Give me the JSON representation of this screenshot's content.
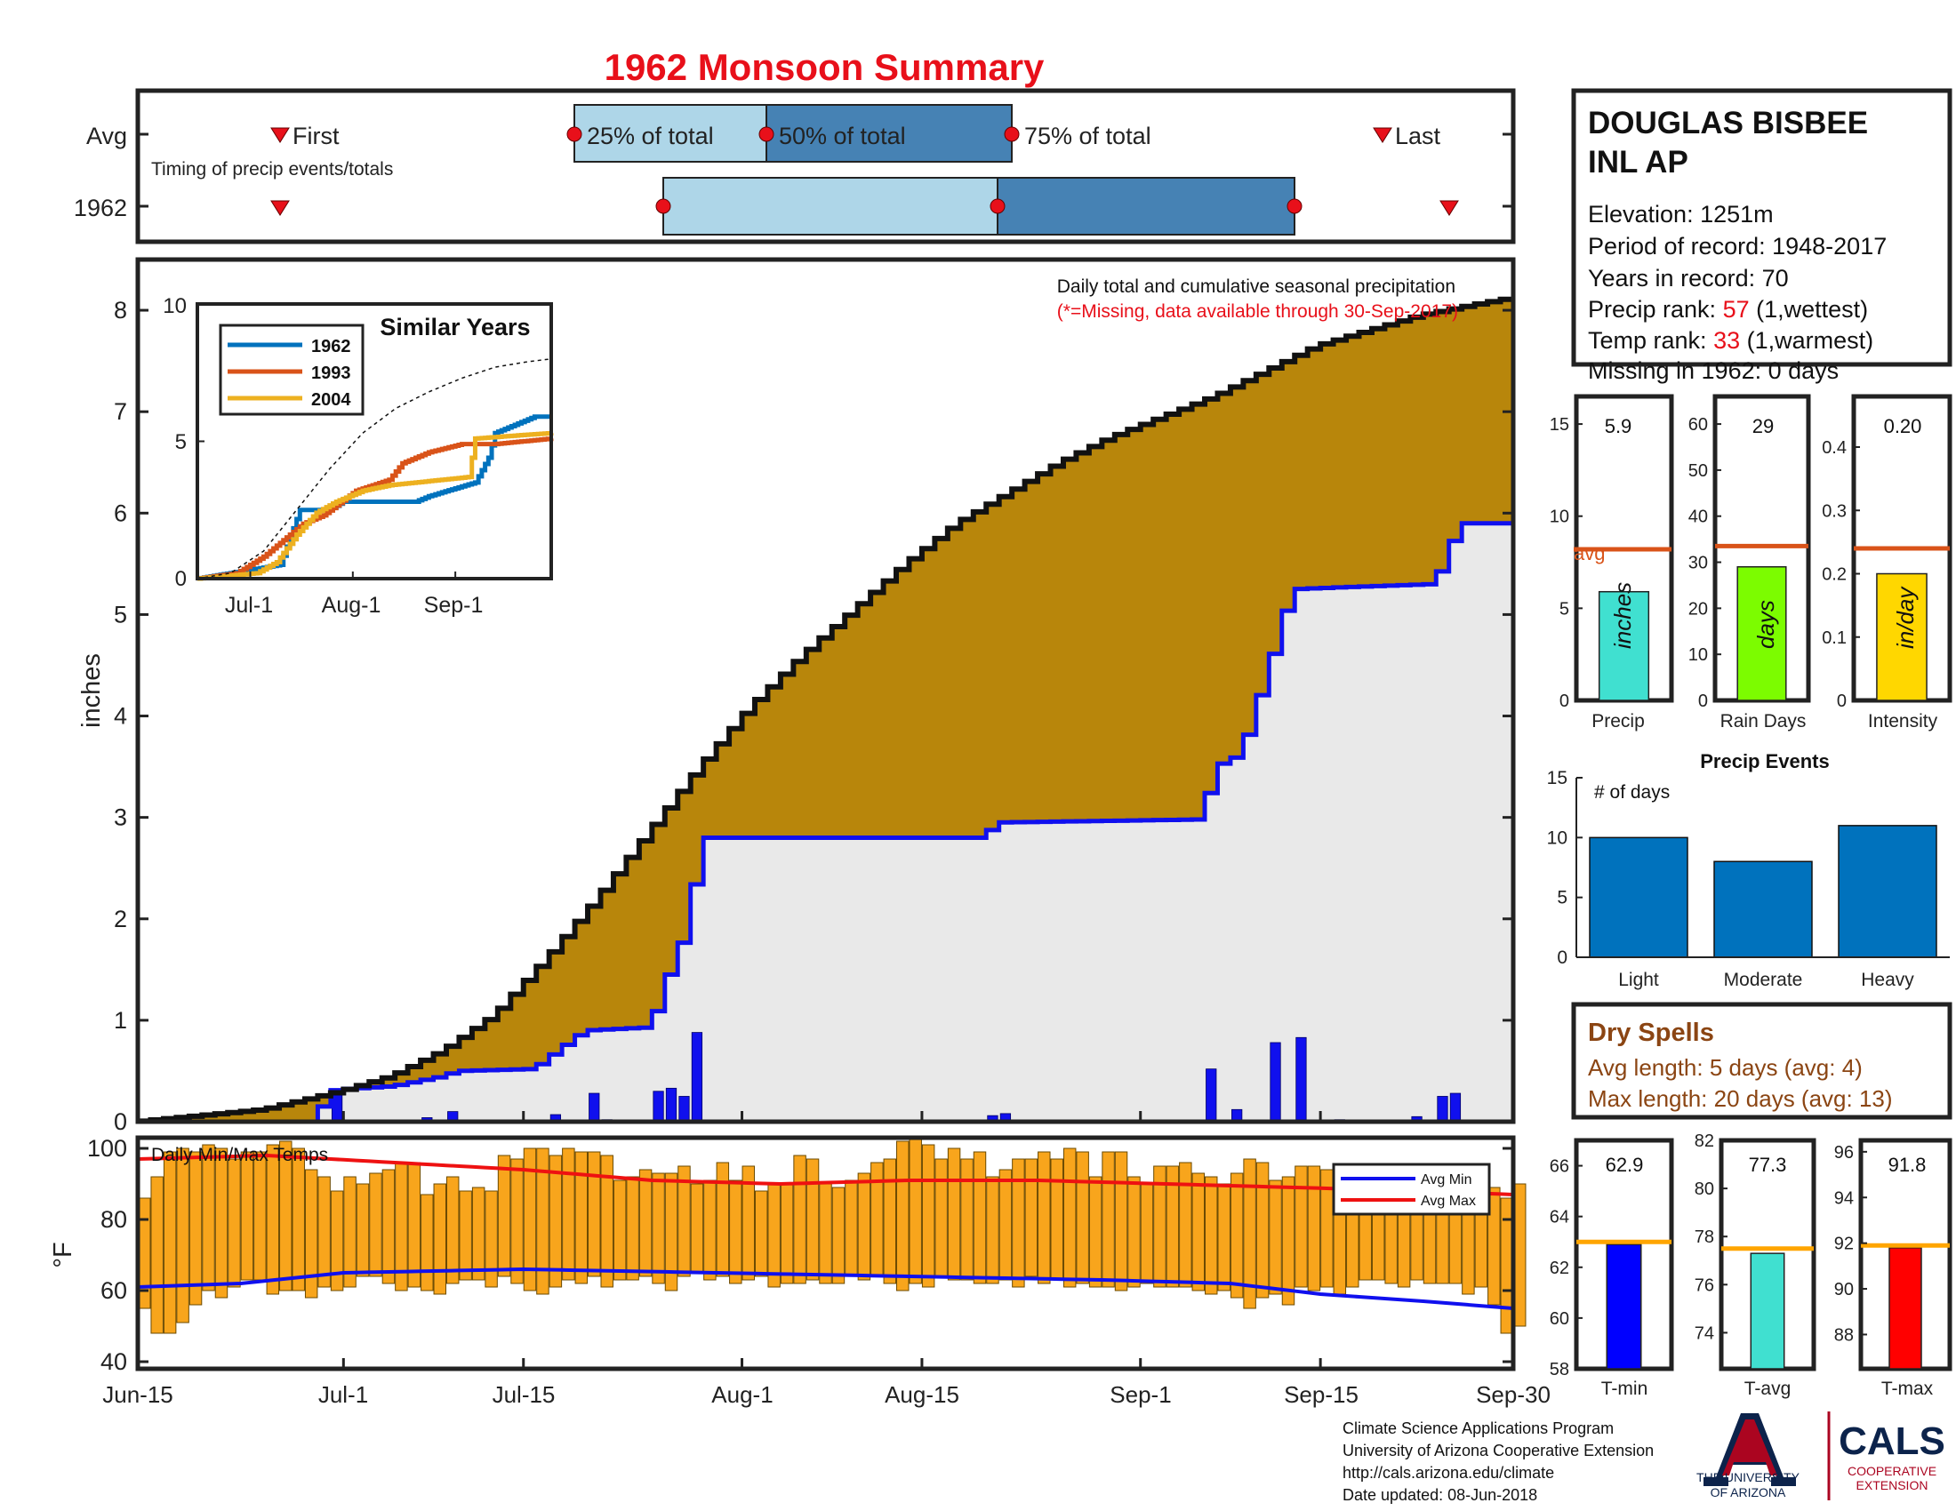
{
  "title": "1962 Monsoon Summary",
  "station": {
    "name_line1": "DOUGLAS BISBEE",
    "name_line2": "INL AP",
    "elevation": "Elevation: 1251m",
    "period": "Period of record: 1948-2017",
    "years": "Years in record: 70",
    "precip_rank_label": "Precip rank: ",
    "precip_rank_value": "57",
    "precip_rank_note": " (1,wettest)",
    "temp_rank_label": "Temp rank: ",
    "temp_rank_value": "33",
    "temp_rank_note": " (1,warmest)",
    "missing": "Missing in 1962: 0 days"
  },
  "timing": {
    "row_avg": "Avg",
    "row_year": "1962",
    "first": "First",
    "p25": "25% of total",
    "p50": "50% of total",
    "p75": "75% of total",
    "last": "Last",
    "caption": "Timing of precip events/totals"
  },
  "precip": {
    "header": "Daily total and cumulative seasonal precipitation",
    "missing_note": "(*=Missing, data available through 30-Sep-2017)",
    "ylabel": "inches"
  },
  "similar": {
    "title": "Similar Years",
    "legend": [
      "1962",
      "1993",
      "2004"
    ],
    "yticks": [
      "10",
      "5",
      "0"
    ],
    "xticks": [
      "Jul-1",
      "Aug-1",
      "Sep-1"
    ]
  },
  "temps": {
    "caption": "Daily Min/Max Temps",
    "ylabel": "°F",
    "legend_min": "Avg Min",
    "legend_max": "Avg Max"
  },
  "dates": [
    "Jun-15",
    "Jul-1",
    "Jul-15",
    "Aug-1",
    "Aug-15",
    "Sep-1",
    "Sep-15",
    "Sep-30"
  ],
  "bars3": {
    "precip_value": "5.9",
    "raindays_value": "29",
    "intensity_value": "0.20",
    "precip_label": "Precip",
    "raindays_label": "Rain Days",
    "intensity_label": "Intensity",
    "precip_unit": "inches",
    "raindays_unit": "days",
    "intensity_unit": "in/day",
    "avg_label": "avg"
  },
  "events": {
    "title": "Precip Events",
    "ylabel": "# of days",
    "categories": [
      "Light",
      "Moderate",
      "Heavy"
    ]
  },
  "dry": {
    "title": "Dry Spells",
    "avg_length": "Avg length: 5 days (avg: 4)",
    "max_length": "Max length: 20 days (avg: 13)"
  },
  "tbars": {
    "tmin_value": "62.9",
    "tavg_value": "77.3",
    "tmax_value": "91.8",
    "tmin_label": "T-min",
    "tavg_label": "T-avg",
    "tmax_label": "T-max"
  },
  "footer": {
    "line1": "Climate Science Applications Program",
    "line2": "University of Arizona Cooperative Extension",
    "line3": "http://cals.arizona.edu/climate",
    "line4": " Date updated: 08-Jun-2018"
  },
  "logos": {
    "ua_line1": "THE UNIVERSITY",
    "ua_line2": "OF ARIZONA",
    "cals": "CALS",
    "cals_line1": "COOPERATIVE",
    "cals_line2": "EXTENSION"
  },
  "colors": {
    "title": "#e8101a",
    "cumulative_fill": "#b8860b",
    "year_fill": "#e9e9e9",
    "daily_bar": "#1010ee",
    "temp_bar": "#f8a51c",
    "avg_line": "#d95319",
    "box_light": "#aed6e8",
    "box_dark": "#4682b4",
    "series_1962": "#0072bd",
    "series_1993": "#d95319",
    "series_2004": "#edb120",
    "dry": "#8b4513"
  },
  "chart_data": [
    {
      "type": "area",
      "name": "cumulative_precip",
      "xlim": [
        0,
        107
      ],
      "ylim": [
        0,
        8.5
      ],
      "yticks": [
        0,
        1,
        2,
        3,
        4,
        5,
        6,
        7,
        8
      ],
      "xtick_days": [
        0,
        16,
        30,
        47,
        61,
        78,
        92,
        107
      ],
      "xtick_labels": [
        "Jun-15",
        "Jul-1",
        "Jul-15",
        "Aug-1",
        "Aug-15",
        "Sep-1",
        "Sep-15",
        "Sep-30"
      ],
      "avg_cumulative_keypoints": [
        [
          0,
          0
        ],
        [
          10,
          0.12
        ],
        [
          16,
          0.3
        ],
        [
          20,
          0.45
        ],
        [
          24,
          0.7
        ],
        [
          28,
          1.05
        ],
        [
          32,
          1.6
        ],
        [
          36,
          2.2
        ],
        [
          40,
          2.85
        ],
        [
          44,
          3.5
        ],
        [
          48,
          4.1
        ],
        [
          52,
          4.6
        ],
        [
          56,
          5.05
        ],
        [
          60,
          5.5
        ],
        [
          64,
          5.9
        ],
        [
          68,
          6.2
        ],
        [
          72,
          6.5
        ],
        [
          76,
          6.75
        ],
        [
          80,
          6.95
        ],
        [
          84,
          7.15
        ],
        [
          88,
          7.4
        ],
        [
          92,
          7.65
        ],
        [
          96,
          7.8
        ],
        [
          100,
          7.95
        ],
        [
          104,
          8.05
        ],
        [
          107,
          8.12
        ]
      ],
      "year_cumulative_keypoints": [
        [
          0,
          0
        ],
        [
          14,
          0.0
        ],
        [
          15,
          0.3
        ],
        [
          16,
          0.32
        ],
        [
          20,
          0.35
        ],
        [
          24,
          0.45
        ],
        [
          25,
          0.5
        ],
        [
          31,
          0.52
        ],
        [
          35,
          0.9
        ],
        [
          40,
          0.93
        ],
        [
          41,
          1.25
        ],
        [
          42,
          1.65
        ],
        [
          43,
          1.88
        ],
        [
          44,
          2.8
        ],
        [
          45,
          2.8
        ],
        [
          66,
          2.8
        ],
        [
          67,
          2.95
        ],
        [
          83,
          2.98
        ],
        [
          84,
          3.5
        ],
        [
          86,
          3.62
        ],
        [
          88,
          4.4
        ],
        [
          90,
          5.25
        ],
        [
          94,
          5.27
        ],
        [
          101,
          5.3
        ],
        [
          102,
          5.55
        ],
        [
          103,
          5.9
        ],
        [
          107,
          5.9
        ]
      ],
      "daily_bars": [
        [
          15,
          0.3
        ],
        [
          22,
          0.04
        ],
        [
          24,
          0.1
        ],
        [
          32,
          0.07
        ],
        [
          35,
          0.28
        ],
        [
          36,
          0.02
        ],
        [
          40,
          0.3
        ],
        [
          41,
          0.33
        ],
        [
          42,
          0.25
        ],
        [
          43,
          0.88
        ],
        [
          66,
          0.06
        ],
        [
          67,
          0.08
        ],
        [
          83,
          0.52
        ],
        [
          85,
          0.12
        ],
        [
          88,
          0.78
        ],
        [
          90,
          0.83
        ],
        [
          93,
          0.02
        ],
        [
          99,
          0.05
        ],
        [
          101,
          0.25
        ],
        [
          102,
          0.28
        ]
      ]
    },
    {
      "type": "line",
      "name": "similar_years",
      "ylim": [
        0,
        10
      ],
      "series": [
        {
          "name": "1962",
          "points": [
            [
              0,
              0
            ],
            [
              15,
              0.3
            ],
            [
              20,
              0.4
            ],
            [
              25,
              0.5
            ],
            [
              31,
              2.5
            ],
            [
              40,
              2.5
            ],
            [
              44,
              2.8
            ],
            [
              66,
              2.8
            ],
            [
              70,
              3.0
            ],
            [
              84,
              3.5
            ],
            [
              88,
              4.4
            ],
            [
              90,
              5.3
            ],
            [
              102,
              5.9
            ],
            [
              107,
              5.9
            ]
          ]
        },
        {
          "name": "1993",
          "points": [
            [
              0,
              0
            ],
            [
              12,
              0.2
            ],
            [
              20,
              0.8
            ],
            [
              28,
              1.6
            ],
            [
              32,
              2.0
            ],
            [
              38,
              2.3
            ],
            [
              48,
              3.2
            ],
            [
              58,
              3.6
            ],
            [
              62,
              4.2
            ],
            [
              70,
              4.6
            ],
            [
              80,
              4.9
            ],
            [
              90,
              4.9
            ],
            [
              107,
              5.1
            ]
          ]
        },
        {
          "name": "2004",
          "points": [
            [
              0,
              0
            ],
            [
              18,
              0.2
            ],
            [
              24,
              0.6
            ],
            [
              30,
              1.6
            ],
            [
              36,
              2.4
            ],
            [
              42,
              2.8
            ],
            [
              50,
              3.2
            ],
            [
              58,
              3.4
            ],
            [
              66,
              3.5
            ],
            [
              74,
              3.6
            ],
            [
              82,
              3.7
            ],
            [
              84,
              5.1
            ],
            [
              95,
              5.2
            ],
            [
              107,
              5.3
            ]
          ]
        },
        {
          "name": "avg",
          "points": [
            [
              0,
              0
            ],
            [
              10,
              0.2
            ],
            [
              20,
              1.0
            ],
            [
              30,
              2.5
            ],
            [
              40,
              4.0
            ],
            [
              50,
              5.3
            ],
            [
              60,
              6.2
            ],
            [
              70,
              6.8
            ],
            [
              80,
              7.3
            ],
            [
              90,
              7.7
            ],
            [
              100,
              7.9
            ],
            [
              107,
              8.0
            ]
          ]
        }
      ]
    },
    {
      "type": "bar",
      "name": "daily_temps",
      "ylim": [
        38,
        103
      ],
      "yticks": [
        40,
        60,
        80,
        100
      ],
      "min_temps": [
        55,
        48,
        48,
        51,
        56,
        60,
        58,
        61,
        63,
        63,
        59,
        60,
        60,
        58,
        61,
        60,
        61,
        64,
        64,
        62,
        60,
        61,
        60,
        59,
        62,
        63,
        63,
        61,
        64,
        62,
        60,
        59,
        61,
        63,
        62,
        64,
        61,
        63,
        63,
        64,
        62,
        60,
        64,
        65,
        63,
        64,
        62,
        63,
        64,
        61,
        62,
        62,
        63,
        62,
        62,
        64,
        63,
        64,
        62,
        60,
        62,
        61,
        64,
        63,
        63,
        62,
        62,
        63,
        61,
        64,
        62,
        63,
        61,
        62,
        61,
        61,
        60,
        61,
        62,
        61,
        61,
        61,
        60,
        59,
        60,
        58,
        55,
        58,
        59,
        56,
        61,
        60,
        61,
        59,
        61,
        63,
        63,
        62,
        61,
        63,
        62,
        62,
        62,
        59,
        61,
        56,
        48,
        50
      ],
      "max_temps": [
        86,
        92,
        99,
        100,
        99,
        101,
        100,
        97,
        99,
        99,
        101,
        102,
        100,
        94,
        92,
        88,
        92,
        90,
        93,
        94,
        96,
        96,
        87,
        90,
        92,
        88,
        89,
        88,
        98,
        97,
        100,
        100,
        98,
        100,
        99,
        99,
        98,
        91,
        92,
        94,
        93,
        93,
        95,
        90,
        91,
        96,
        91,
        95,
        88,
        90,
        90,
        98,
        97,
        90,
        89,
        91,
        93,
        96,
        97,
        102,
        103,
        101,
        97,
        100,
        97,
        99,
        92,
        94,
        97,
        97,
        99,
        97,
        100,
        99,
        92,
        99,
        99,
        92,
        90,
        95,
        95,
        96,
        93,
        92,
        90,
        93,
        97,
        96,
        91,
        92,
        95,
        95,
        94,
        90,
        89,
        91,
        92,
        94,
        89,
        92,
        93,
        90,
        92,
        87,
        89,
        89,
        86,
        90
      ],
      "avg_min": [
        [
          0,
          61
        ],
        [
          8,
          62
        ],
        [
          16,
          65
        ],
        [
          30,
          66
        ],
        [
          45,
          65
        ],
        [
          60,
          64
        ],
        [
          75,
          63
        ],
        [
          85,
          62
        ],
        [
          92,
          59
        ],
        [
          100,
          57
        ],
        [
          107,
          55
        ]
      ],
      "avg_max": [
        [
          0,
          97
        ],
        [
          10,
          98
        ],
        [
          20,
          96
        ],
        [
          30,
          94
        ],
        [
          40,
          91
        ],
        [
          50,
          90
        ],
        [
          60,
          91
        ],
        [
          70,
          91
        ],
        [
          80,
          90
        ],
        [
          90,
          89
        ],
        [
          100,
          88
        ],
        [
          107,
          87
        ]
      ]
    },
    {
      "type": "bar",
      "name": "seasonal_summary",
      "categories": [
        "Precip",
        "Rain Days",
        "Intensity"
      ],
      "values": [
        5.9,
        29,
        0.2
      ],
      "avg": [
        8.2,
        33.5,
        0.24
      ],
      "ylims": [
        [
          0,
          16.5
        ],
        [
          0,
          66
        ],
        [
          0,
          0.48
        ]
      ]
    },
    {
      "type": "bar",
      "name": "precip_events",
      "categories": [
        "Light",
        "Moderate",
        "Heavy"
      ],
      "values": [
        10,
        8,
        11
      ],
      "ylim": [
        0,
        15
      ],
      "yticks": [
        0,
        5,
        10,
        15
      ]
    },
    {
      "type": "bar",
      "name": "temperature_summary",
      "categories": [
        "T-min",
        "T-avg",
        "T-max"
      ],
      "values": [
        62.9,
        77.3,
        91.8
      ],
      "avg": [
        63.0,
        77.5,
        91.9
      ],
      "ylims": [
        [
          58,
          67
        ],
        [
          72.5,
          82
        ],
        [
          86.5,
          96.5
        ]
      ]
    }
  ]
}
